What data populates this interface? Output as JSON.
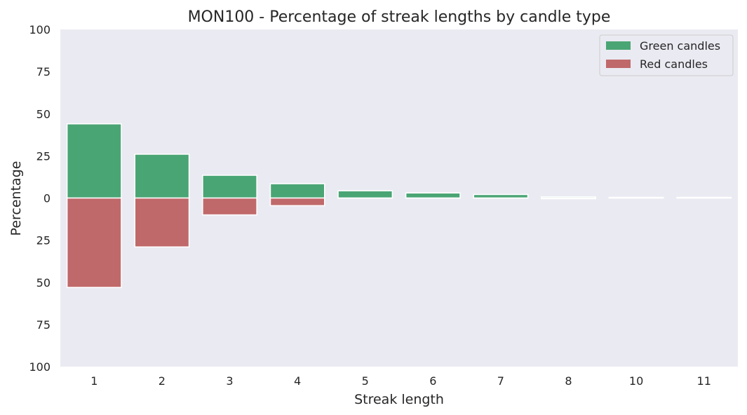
{
  "chart_data": {
    "type": "bar",
    "title": "MON100 - Percentage of streak lengths by candle type",
    "xlabel": "Streak length",
    "ylabel": "Percentage",
    "categories": [
      "1",
      "2",
      "3",
      "4",
      "5",
      "6",
      "7",
      "8",
      "10",
      "11"
    ],
    "series": [
      {
        "name": "Green candles",
        "color": "#4aa574",
        "direction": "up",
        "values": [
          44,
          26,
          13.5,
          8.5,
          4.3,
          3,
          2.1,
          0.7,
          0.4,
          0.4
        ]
      },
      {
        "name": "Red candles",
        "color": "#c0696a",
        "direction": "down",
        "values": [
          53,
          29,
          10,
          4.5,
          0,
          0,
          0,
          0.4,
          0,
          0
        ]
      }
    ],
    "ylim": [
      -100,
      100
    ],
    "yticks": [
      -100,
      -75,
      -50,
      -25,
      0,
      25,
      50,
      75,
      100
    ],
    "ytick_labels": [
      "100",
      "75",
      "50",
      "25",
      "0",
      "25",
      "50",
      "75",
      "100"
    ],
    "grid": false,
    "background": "#eaeaf2",
    "legend_position": "top-right"
  }
}
